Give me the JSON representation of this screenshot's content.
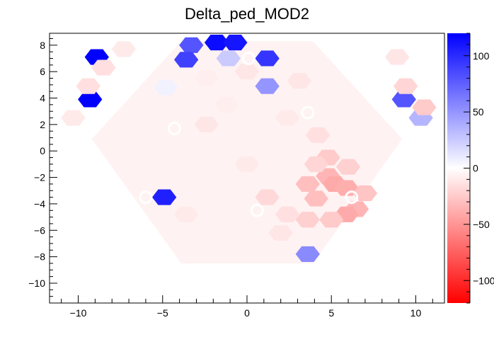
{
  "chart_data": {
    "type": "heatmap",
    "title": "Delta_ped_MOD2",
    "xlabel": "",
    "ylabel": "",
    "xlim": [
      -11.7,
      11.7
    ],
    "ylim": [
      -11.5,
      8.9
    ],
    "x_ticks": [
      -10,
      -5,
      0,
      5,
      10
    ],
    "y_ticks": [
      -10,
      -8,
      -6,
      -4,
      -2,
      0,
      2,
      4,
      6,
      8
    ],
    "colorbar": {
      "range": [
        -120,
        120
      ],
      "ticks": [
        -100,
        -50,
        0,
        50,
        100
      ],
      "colors": {
        "min": "#ff0000",
        "mid": "#ffffff",
        "max": "#0000ff"
      }
    },
    "grid": false,
    "legend": "none",
    "hex_cell_radius": 0.72,
    "cells": [
      [
        -3.3,
        8.0,
        80
      ],
      [
        -1.8,
        8.2,
        115
      ],
      [
        -0.7,
        8.2,
        110
      ],
      [
        -3.6,
        6.9,
        90
      ],
      [
        -1.1,
        7.0,
        25
      ],
      [
        1.2,
        7.0,
        95
      ],
      [
        1.2,
        4.9,
        50
      ],
      [
        -4.9,
        -3.5,
        105
      ],
      [
        3.6,
        -7.8,
        55
      ],
      [
        -9.3,
        3.9,
        120
      ],
      [
        -8.9,
        7.1,
        120
      ],
      [
        9.3,
        3.9,
        80
      ],
      [
        10.3,
        2.5,
        35
      ],
      [
        -8.5,
        6.3,
        -15
      ],
      [
        -9.4,
        4.9,
        -15
      ],
      [
        -10.3,
        2.5,
        -10
      ],
      [
        9.4,
        4.9,
        -20
      ],
      [
        10.5,
        3.3,
        -25
      ],
      [
        8.9,
        7.1,
        -12
      ],
      [
        -7.3,
        7.7,
        -10
      ],
      [
        4.8,
        -1.9,
        -35
      ],
      [
        5.2,
        -2.5,
        -40
      ],
      [
        5.9,
        -2.8,
        -38
      ],
      [
        6.5,
        -4.4,
        -35
      ],
      [
        5.9,
        -4.8,
        -40
      ],
      [
        4.1,
        -3.6,
        -30
      ],
      [
        5.0,
        -5.2,
        -25
      ],
      [
        3.6,
        -5.2,
        -22
      ],
      [
        4.8,
        -0.5,
        -25
      ],
      [
        3.6,
        -2.5,
        -30
      ],
      [
        1.2,
        -3.5,
        -18
      ],
      [
        2.4,
        -4.8,
        -15
      ],
      [
        6.0,
        -1.2,
        -22
      ],
      [
        7.0,
        -3.2,
        -28
      ],
      [
        4.1,
        -1.0,
        -20
      ],
      [
        -2.4,
        2.0,
        -12
      ],
      [
        -3.6,
        -4.8,
        -10
      ],
      [
        -1.2,
        3.5,
        -8
      ],
      [
        0.0,
        6.0,
        -12
      ],
      [
        2.4,
        2.5,
        -10
      ],
      [
        -2.4,
        5.5,
        -8
      ],
      [
        3.1,
        5.3,
        -12
      ],
      [
        -4.8,
        4.8,
        6
      ],
      [
        0.0,
        -1.0,
        -10
      ],
      [
        2.0,
        -6.2,
        -12
      ],
      [
        4.2,
        1.2,
        -15
      ]
    ],
    "empty_rings": [
      [
        0.1,
        7.0
      ],
      [
        3.6,
        2.9
      ],
      [
        -4.3,
        1.7
      ],
      [
        -6.0,
        -3.5
      ],
      [
        6.2,
        -3.5
      ],
      [
        0.6,
        -4.5
      ]
    ]
  }
}
